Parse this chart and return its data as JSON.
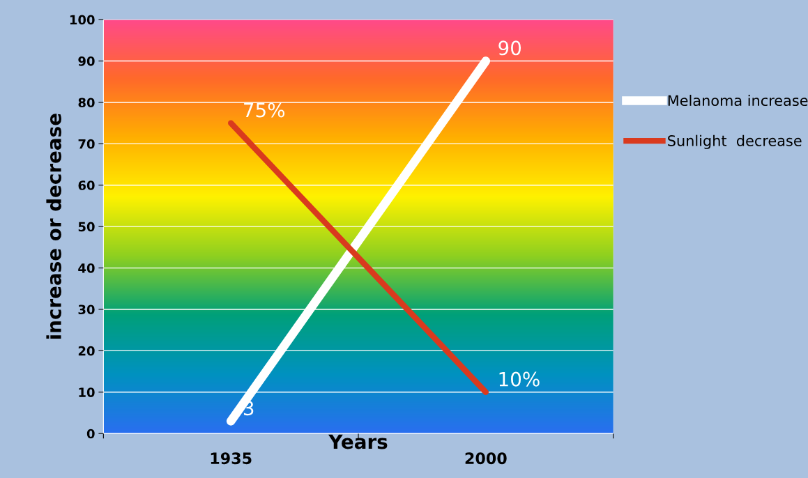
{
  "chart_data": {
    "type": "line",
    "xlabel": "Years",
    "ylabel": "increase or decrease",
    "categories": [
      "1935",
      "2000"
    ],
    "series": [
      {
        "name": "Melanoma increase",
        "color": "#ffffff",
        "values": [
          3,
          90
        ],
        "value_labels": [
          "3",
          "90"
        ]
      },
      {
        "name": "Sunlight  decrease",
        "color": "#d93a1e",
        "values": [
          75,
          10
        ],
        "value_labels": [
          "75%",
          "10%"
        ]
      }
    ],
    "ylim": [
      0,
      100
    ],
    "yticks": [
      0,
      10,
      20,
      30,
      40,
      50,
      60,
      70,
      80,
      90,
      100
    ],
    "grid": "y",
    "legend": "right",
    "marker": "none",
    "line_style": "solid"
  }
}
